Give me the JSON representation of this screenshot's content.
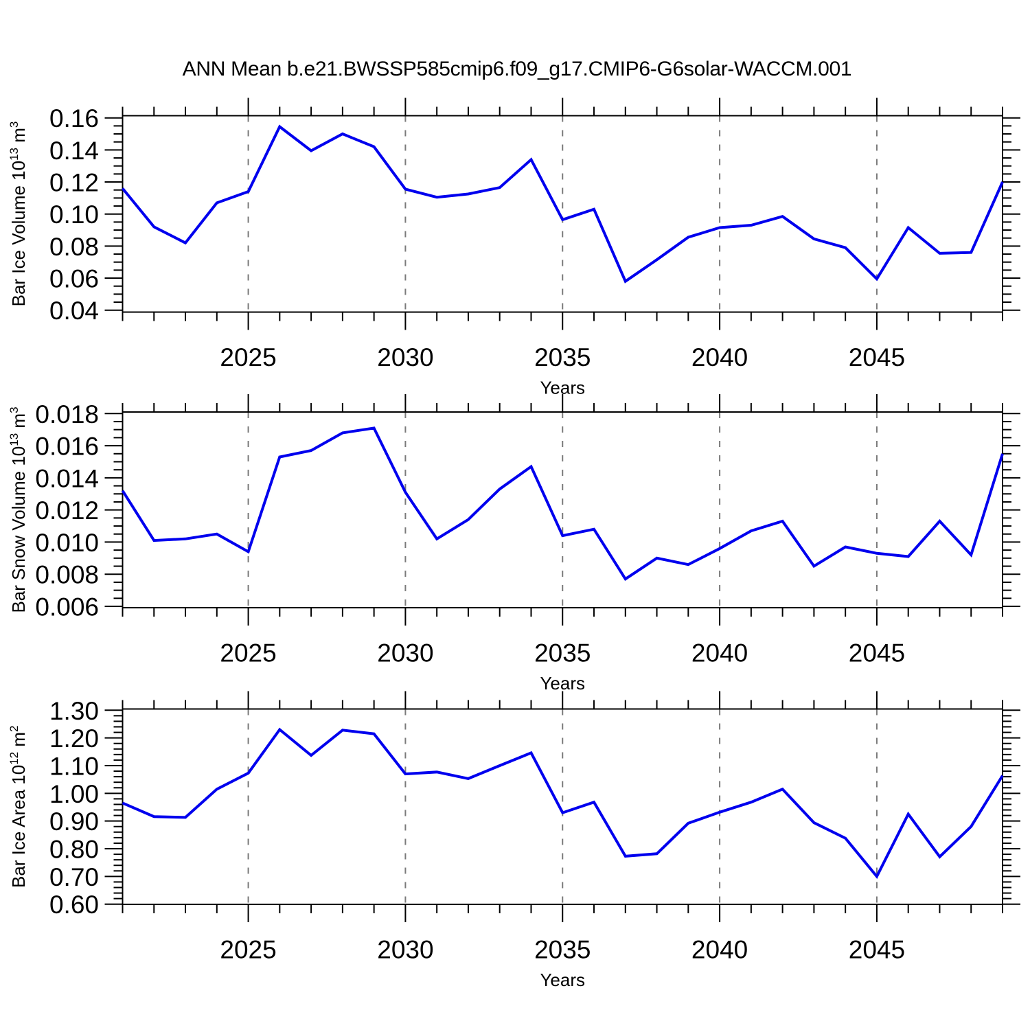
{
  "title": "ANN Mean b.e21.BWSSP585cmip6.f09_g17.CMIP6-G6solar-WACCM.001",
  "colors": {
    "line": "#0000EE",
    "axis": "#000000",
    "grid": "#7A7A7A",
    "background": "#FFFFFF"
  },
  "chart_data": [
    {
      "type": "line",
      "title": "",
      "xlabel": "Years",
      "ylabel": "Bar Ice Volume 10^13 m^3",
      "ylabel_parts": [
        {
          "t": "Bar Ice Volume 10"
        },
        {
          "t": "13",
          "sup": true
        },
        {
          "t": " m"
        },
        {
          "t": "3",
          "sup": true
        }
      ],
      "x": [
        2021,
        2022,
        2023,
        2024,
        2025,
        2026,
        2027,
        2028,
        2029,
        2030,
        2031,
        2032,
        2033,
        2034,
        2035,
        2036,
        2037,
        2038,
        2039,
        2040,
        2041,
        2042,
        2043,
        2044,
        2045,
        2046,
        2047,
        2048,
        2049
      ],
      "values": [
        0.116,
        0.092,
        0.082,
        0.107,
        0.114,
        0.1545,
        0.1395,
        0.15,
        0.142,
        0.1155,
        0.1105,
        0.1125,
        0.1165,
        0.134,
        0.0965,
        0.103,
        0.058,
        0.0715,
        0.0855,
        0.0915,
        0.093,
        0.0985,
        0.0845,
        0.079,
        0.0595,
        0.0915,
        0.0755,
        0.076,
        0.12
      ],
      "xlim": [
        2021,
        2049
      ],
      "ylim": [
        0.0388,
        0.16137
      ],
      "xticks": [
        2025,
        2030,
        2035,
        2040,
        2045
      ],
      "xtick_labels": [
        "2025",
        "2030",
        "2035",
        "2040",
        "2045"
      ],
      "yticks": [
        0.04,
        0.06,
        0.08,
        0.1,
        0.12,
        0.14,
        0.16
      ],
      "ytick_labels": [
        "0.04",
        "0.06",
        "0.08",
        "0.10",
        "0.12",
        "0.14",
        "0.16"
      ],
      "yminor_step": 0.005,
      "grid_x": [
        2025,
        2030,
        2035,
        2040,
        2045
      ],
      "legend": "none",
      "line_color": "#0000EE"
    },
    {
      "type": "line",
      "title": "",
      "xlabel": "Years",
      "ylabel": "Bar Snow Volume 10^13 m^3",
      "ylabel_parts": [
        {
          "t": "Bar Snow Volume 10"
        },
        {
          "t": "13",
          "sup": true
        },
        {
          "t": " m"
        },
        {
          "t": "3",
          "sup": true
        }
      ],
      "x": [
        2021,
        2022,
        2023,
        2024,
        2025,
        2026,
        2027,
        2028,
        2029,
        2030,
        2031,
        2032,
        2033,
        2034,
        2035,
        2036,
        2037,
        2038,
        2039,
        2040,
        2041,
        2042,
        2043,
        2044,
        2045,
        2046,
        2047,
        2048,
        2049
      ],
      "values": [
        0.0132,
        0.0101,
        0.0102,
        0.0105,
        0.0094,
        0.0153,
        0.0157,
        0.0168,
        0.0171,
        0.0131,
        0.0102,
        0.0114,
        0.0133,
        0.0147,
        0.0104,
        0.0108,
        0.0077,
        0.009,
        0.0086,
        0.0096,
        0.0107,
        0.0113,
        0.0085,
        0.0097,
        0.0093,
        0.0091,
        0.0113,
        0.0092,
        0.0155
      ],
      "xlim": [
        2021,
        2049
      ],
      "ylim": [
        0.0059145,
        0.0180983
      ],
      "xticks": [
        2025,
        2030,
        2035,
        2040,
        2045
      ],
      "xtick_labels": [
        "2025",
        "2030",
        "2035",
        "2040",
        "2045"
      ],
      "yticks": [
        0.006,
        0.008,
        0.01,
        0.012,
        0.014,
        0.016,
        0.018
      ],
      "ytick_labels": [
        "0.006",
        "0.008",
        "0.010",
        "0.012",
        "0.014",
        "0.016",
        "0.018"
      ],
      "yminor_step": 0.0005,
      "grid_x": [
        2025,
        2030,
        2035,
        2040,
        2045
      ],
      "legend": "none",
      "line_color": "#0000EE"
    },
    {
      "type": "line",
      "title": "",
      "xlabel": "Years",
      "ylabel": "Bar Ice Area 10^12 m^2",
      "ylabel_parts": [
        {
          "t": "Bar Ice Area 10"
        },
        {
          "t": "12",
          "sup": true
        },
        {
          "t": " m"
        },
        {
          "t": "2",
          "sup": true
        }
      ],
      "x": [
        2021,
        2022,
        2023,
        2024,
        2025,
        2026,
        2027,
        2028,
        2029,
        2030,
        2031,
        2032,
        2033,
        2034,
        2035,
        2036,
        2037,
        2038,
        2039,
        2040,
        2041,
        2042,
        2043,
        2044,
        2045,
        2046,
        2047,
        2048,
        2049
      ],
      "values": [
        0.965,
        0.916,
        0.913,
        1.015,
        1.073,
        1.23,
        1.137,
        1.228,
        1.215,
        1.07,
        1.077,
        1.053,
        1.1,
        1.146,
        0.93,
        0.968,
        0.773,
        0.782,
        0.892,
        0.932,
        0.968,
        1.015,
        0.894,
        0.838,
        0.7,
        0.925,
        0.771,
        0.88,
        1.064
      ],
      "xlim": [
        2021,
        2049
      ],
      "ylim": [
        0.59925,
        1.30446
      ],
      "xticks": [
        2025,
        2030,
        2035,
        2040,
        2045
      ],
      "xtick_labels": [
        "2025",
        "2030",
        "2035",
        "2040",
        "2045"
      ],
      "yticks": [
        0.6,
        0.7,
        0.8,
        0.9,
        1.0,
        1.1,
        1.2,
        1.3
      ],
      "ytick_labels": [
        "0.60",
        "0.70",
        "0.80",
        "0.90",
        "1.00",
        "1.10",
        "1.20",
        "1.30"
      ],
      "yminor_step": 0.02,
      "grid_x": [
        2025,
        2030,
        2035,
        2040,
        2045
      ],
      "legend": "none",
      "line_color": "#0000EE"
    }
  ]
}
